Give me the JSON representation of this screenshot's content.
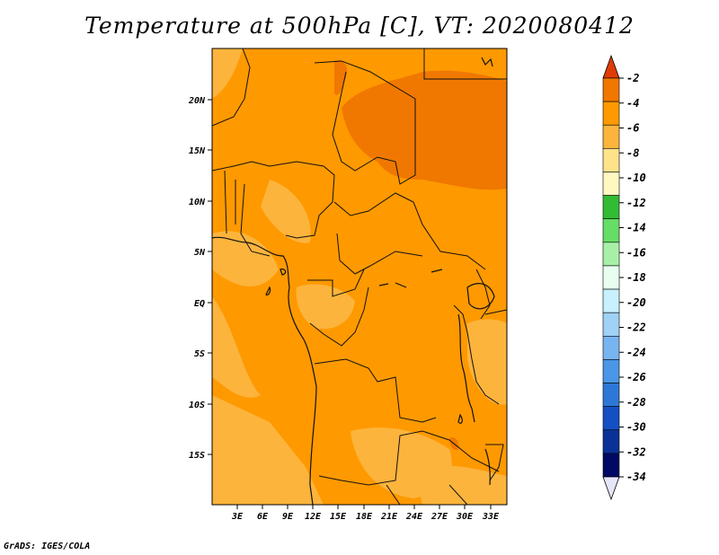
{
  "title": "Temperature at 500hPa [C], VT: 2020080412",
  "credit": "GrADS: IGES/COLA",
  "map": {
    "lon_labels": [
      "3E",
      "6E",
      "9E",
      "12E",
      "15E",
      "18E",
      "21E",
      "24E",
      "27E",
      "30E",
      "33E"
    ],
    "lat_labels": [
      "20N",
      "15N",
      "10N",
      "5N",
      "EQ",
      "5S",
      "10S",
      "15S"
    ],
    "extent": {
      "lon": [
        0,
        35
      ],
      "lat": [
        -20,
        25
      ]
    }
  },
  "colorbar": {
    "labels": [
      "-2",
      "-4",
      "-6",
      "-8",
      "-10",
      "-12",
      "-14",
      "-16",
      "-18",
      "-20",
      "-22",
      "-24",
      "-26",
      "-28",
      "-30",
      "-32",
      "-34"
    ],
    "colors": [
      "#e03c05",
      "#f07800",
      "#ff9900",
      "#fcb43c",
      "#fee38a",
      "#fff8c0",
      "#33bb33",
      "#66dd66",
      "#a8f0a8",
      "#e8fff0",
      "#c8f0ff",
      "#a0d2f5",
      "#78b4f0",
      "#4b96e6",
      "#2d78d7",
      "#1450c3",
      "#0a3296",
      "#000a64",
      "#e6e6fa"
    ],
    "top_color": "#e03c05",
    "bottom_color": "#e6e6fa"
  }
}
